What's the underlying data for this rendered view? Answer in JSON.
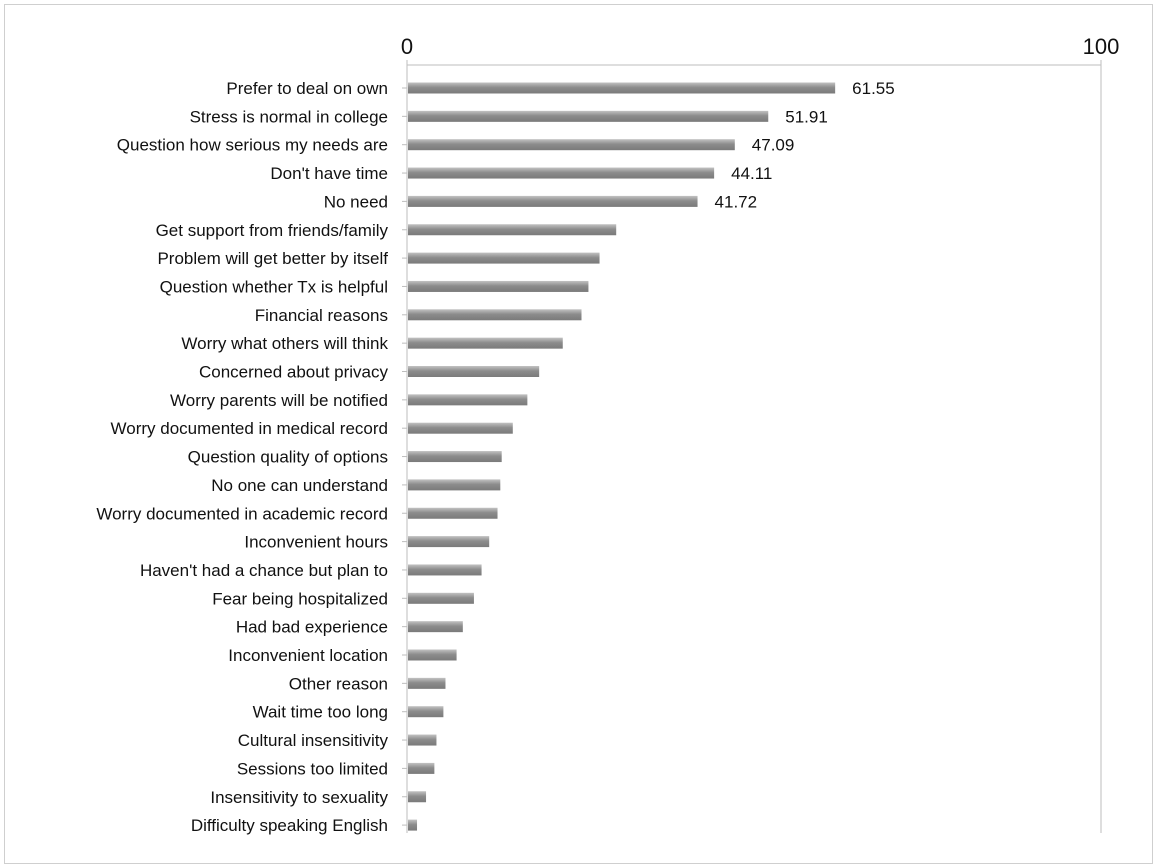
{
  "chart_data": {
    "type": "bar",
    "orientation": "horizontal",
    "axis_position": "top",
    "xlim": [
      0,
      100
    ],
    "tick_labels": [
      "0",
      "100"
    ],
    "grid": false,
    "title": "",
    "xlabel": "",
    "ylabel": "",
    "categories": [
      "Prefer to deal on own",
      "Stress is normal in college",
      "Question how serious my needs are",
      "Don't have time",
      "No need",
      "Get support from friends/family",
      "Problem will get better by itself",
      "Question whether Tx is helpful",
      "Financial reasons",
      "Worry what others will think",
      "Concerned about privacy",
      "Worry parents will be notified",
      "Worry documented in medical record",
      "Question quality of options",
      "No one can understand",
      "Worry documented in academic record",
      "Inconvenient hours",
      "Haven't had a chance but plan to",
      "Fear being hospitalized",
      "Had bad experience",
      "Inconvenient location",
      "Other reason",
      "Wait time too long",
      "Cultural insensitivity",
      "Sessions too limited",
      "Insensitivity to sexuality",
      "Difficulty speaking English"
    ],
    "values": [
      61.55,
      51.91,
      47.09,
      44.11,
      41.72,
      30.0,
      27.6,
      26.0,
      25.0,
      22.3,
      18.9,
      17.2,
      15.1,
      13.5,
      13.3,
      12.9,
      11.7,
      10.6,
      9.5,
      7.9,
      7.0,
      5.4,
      5.1,
      4.1,
      3.8,
      2.6,
      1.3
    ],
    "data_labels": [
      "61.55",
      "51.91",
      "47.09",
      "44.11",
      "41.72",
      "",
      "",
      "",
      "",
      "",
      "",
      "",
      "",
      "",
      "",
      "",
      "",
      "",
      "",
      "",
      "",
      "",
      "",
      "",
      "",
      "",
      ""
    ],
    "bar_color": "#8c8c8c",
    "bar_highlight": "#c2c2c2",
    "axis_color": "#bdbdbd"
  }
}
